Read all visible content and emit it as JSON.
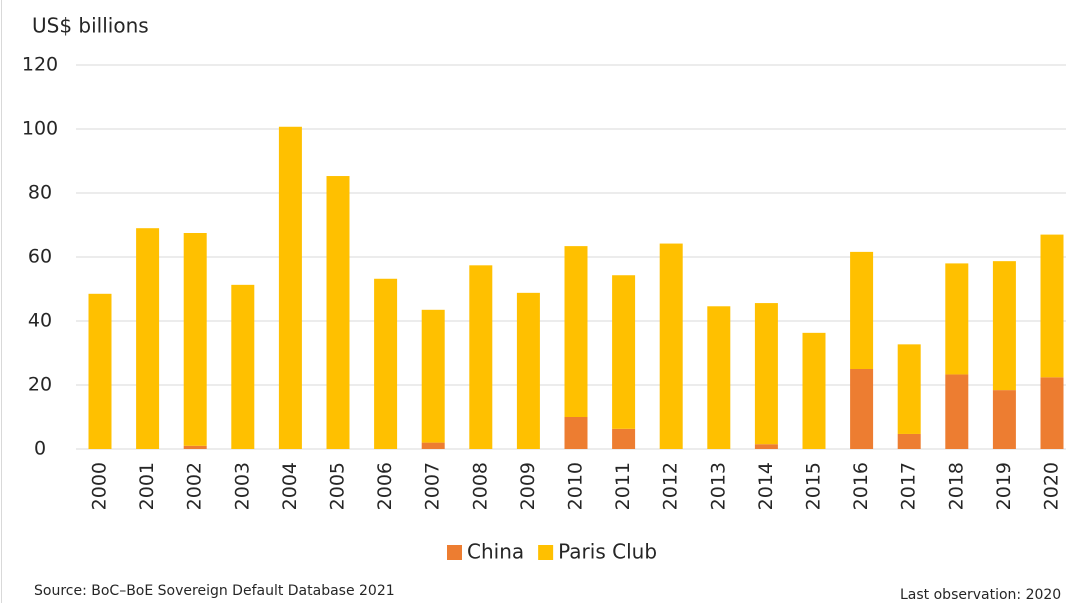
{
  "chart_data": {
    "type": "stacked-bar",
    "y_label": "US$ billions",
    "categories": [
      "2000",
      "2001",
      "2002",
      "2003",
      "2004",
      "2005",
      "2006",
      "2007",
      "2008",
      "2009",
      "2010",
      "2011",
      "2012",
      "2013",
      "2014",
      "2015",
      "2016",
      "2017",
      "2018",
      "2019",
      "2020"
    ],
    "series": [
      {
        "name": "China",
        "color": "#ed7d31",
        "values": [
          0,
          0,
          1,
          0,
          0,
          0,
          0,
          2,
          0,
          0,
          10,
          6.3,
          0,
          0,
          1.5,
          0,
          25,
          4.7,
          23.3,
          18.4,
          22.4
        ]
      },
      {
        "name": "Paris Club",
        "color": "#ffc000",
        "values": [
          48.5,
          69,
          66.5,
          51.3,
          100.7,
          85.3,
          53.2,
          41.5,
          57.4,
          48.8,
          53.4,
          48,
          64.2,
          44.6,
          44.1,
          36.3,
          36.6,
          28,
          34.7,
          40.3,
          44.6
        ]
      }
    ],
    "ylim": [
      0,
      120
    ],
    "yticks": [
      0,
      20,
      40,
      60,
      80,
      100,
      120
    ],
    "grid": true,
    "legend": "bottom",
    "source": "Source: BoC–BoE Sovereign Default Database 2021",
    "note": "Last observation: 2020"
  }
}
